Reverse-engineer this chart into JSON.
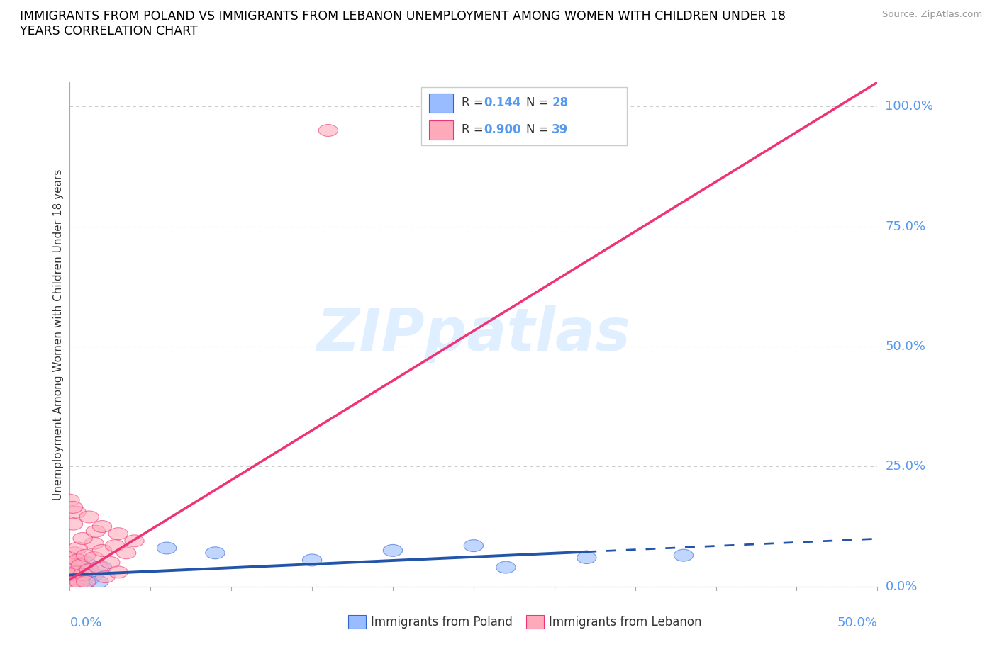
{
  "title_line1": "IMMIGRANTS FROM POLAND VS IMMIGRANTS FROM LEBANON UNEMPLOYMENT AMONG WOMEN WITH CHILDREN UNDER 18",
  "title_line2": "YEARS CORRELATION CHART",
  "source": "Source: ZipAtlas.com",
  "ylabel": "Unemployment Among Women with Children Under 18 years",
  "xlim": [
    0.0,
    0.5
  ],
  "ylim": [
    0.0,
    1.05
  ],
  "poland_R": "0.144",
  "poland_N": "28",
  "lebanon_R": "0.900",
  "lebanon_N": "39",
  "poland_fill": "#99BBFF",
  "poland_edge": "#3366CC",
  "lebanon_fill": "#FFAABB",
  "lebanon_edge": "#EE3377",
  "poland_line_color": "#2255AA",
  "lebanon_line_color": "#EE3377",
  "watermark_color": "#DDEEFF",
  "grid_color": "#CCCCCC",
  "label_color": "#5599EE",
  "poland_x": [
    0.0,
    0.0,
    0.0,
    0.0,
    0.0,
    0.002,
    0.002,
    0.003,
    0.004,
    0.005,
    0.005,
    0.006,
    0.007,
    0.008,
    0.01,
    0.01,
    0.012,
    0.015,
    0.018,
    0.02,
    0.06,
    0.09,
    0.15,
    0.2,
    0.27,
    0.32,
    0.38,
    0.25
  ],
  "poland_y": [
    0.0,
    0.01,
    0.02,
    0.03,
    0.005,
    0.015,
    0.025,
    0.008,
    0.018,
    0.035,
    0.045,
    0.012,
    0.022,
    0.005,
    0.03,
    0.05,
    0.015,
    0.025,
    0.01,
    0.04,
    0.08,
    0.07,
    0.055,
    0.075,
    0.04,
    0.06,
    0.065,
    0.085
  ],
  "lebanon_x": [
    0.0,
    0.0,
    0.0,
    0.0,
    0.001,
    0.001,
    0.002,
    0.002,
    0.003,
    0.003,
    0.004,
    0.005,
    0.005,
    0.006,
    0.007,
    0.008,
    0.01,
    0.01,
    0.012,
    0.015,
    0.015,
    0.018,
    0.02,
    0.022,
    0.025,
    0.028,
    0.03,
    0.03,
    0.035,
    0.04,
    0.0,
    0.002,
    0.004,
    0.008,
    0.012,
    0.016,
    0.02,
    0.002,
    0.16
  ],
  "lebanon_y": [
    0.02,
    0.04,
    0.06,
    0.005,
    0.015,
    0.035,
    0.025,
    0.05,
    0.01,
    0.07,
    0.03,
    0.055,
    0.08,
    0.008,
    0.045,
    0.025,
    0.065,
    0.01,
    0.035,
    0.06,
    0.09,
    0.04,
    0.075,
    0.02,
    0.05,
    0.085,
    0.03,
    0.11,
    0.07,
    0.095,
    0.18,
    0.13,
    0.155,
    0.1,
    0.145,
    0.115,
    0.125,
    0.165,
    0.95
  ],
  "ytick_vals": [
    0.0,
    0.25,
    0.5,
    0.75,
    1.0
  ],
  "ytick_labels": [
    "0.0%",
    "25.0%",
    "50.0%",
    "75.0%",
    "100.0%"
  ]
}
